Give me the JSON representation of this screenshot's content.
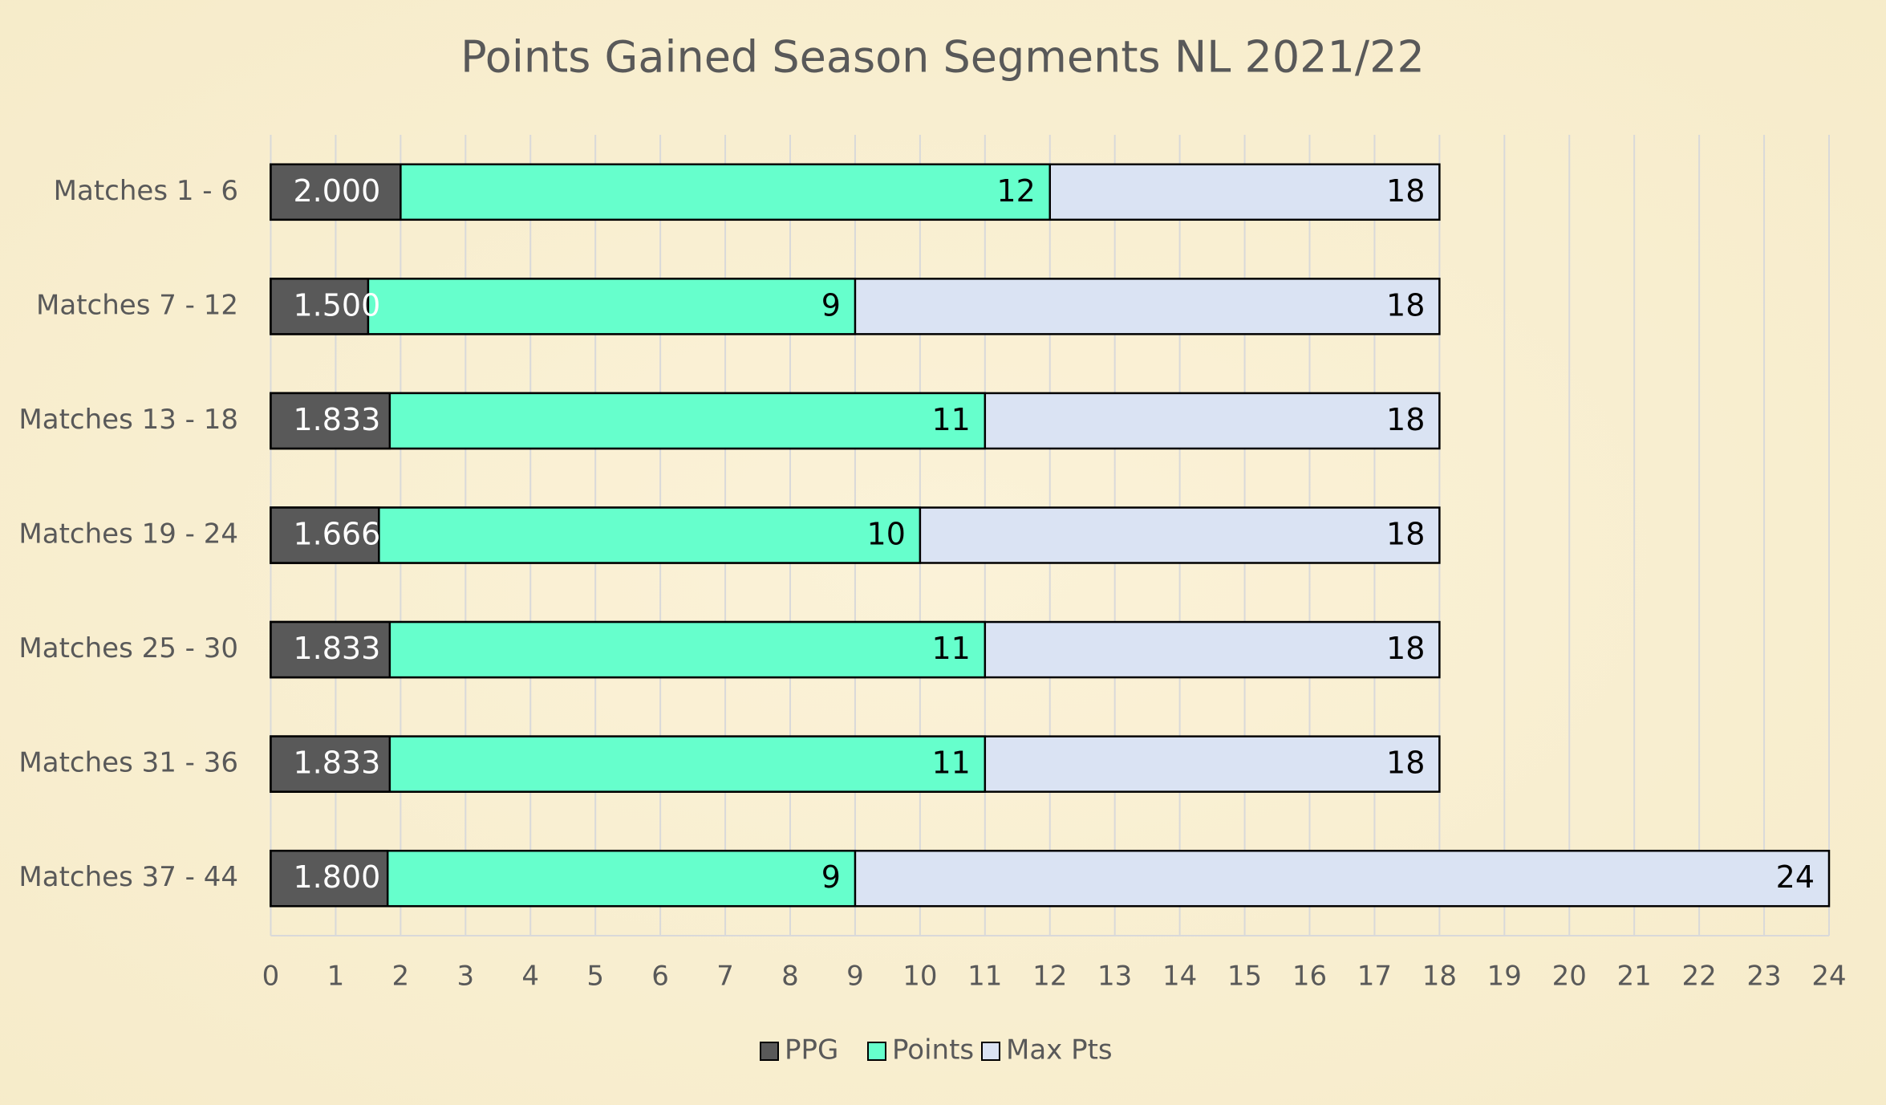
{
  "chart_data": {
    "type": "bar",
    "orientation": "horizontal",
    "overlap": true,
    "title": "Points Gained Season Segments NL 2021/22",
    "categories": [
      "Matches 1 - 6",
      "Matches 7 - 12",
      "Matches 13 - 18",
      "Matches 19 - 24",
      "Matches 25 - 30",
      "Matches 31 - 36",
      "Matches 37 - 44"
    ],
    "series": [
      {
        "name": "PPG",
        "color": "#595959",
        "label_color": "#ffffff",
        "values": [
          2,
          1.5,
          1.833,
          1.666,
          1.833,
          1.833,
          1.8
        ],
        "value_labels": [
          "2.000",
          "1.500",
          "1.833",
          "1.666",
          "1.833",
          "1.833",
          "1.800"
        ]
      },
      {
        "name": "Points",
        "color": "#66ffcc",
        "label_color": "#000000",
        "values": [
          12,
          9,
          11,
          10,
          11,
          11,
          9
        ]
      },
      {
        "name": "Max Pts",
        "color": "#dae3f3",
        "label_color": "#000000",
        "values": [
          18,
          18,
          18,
          18,
          18,
          18,
          24
        ]
      }
    ],
    "xlim": [
      0,
      24
    ],
    "xticks": [
      0,
      1,
      2,
      3,
      4,
      5,
      6,
      7,
      8,
      9,
      10,
      11,
      12,
      13,
      14,
      15,
      16,
      17,
      18,
      19,
      20,
      21,
      22,
      23,
      24
    ],
    "grid": true,
    "legend": "bottom"
  }
}
